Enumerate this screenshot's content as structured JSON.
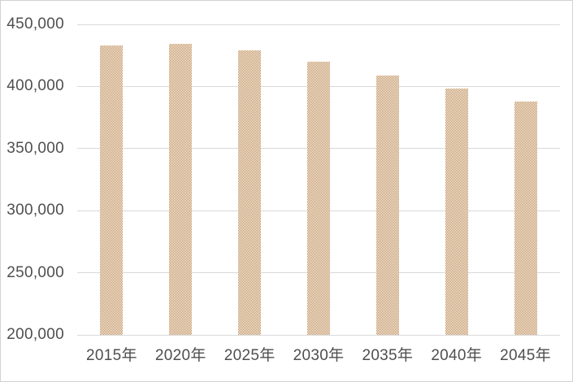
{
  "chart_data": {
    "type": "bar",
    "title": "",
    "xlabel": "",
    "ylabel": "",
    "categories": [
      "2015年",
      "2020年",
      "2025年",
      "2030年",
      "2035年",
      "2040年",
      "2045年"
    ],
    "values": [
      433000,
      434000,
      429000,
      420000,
      409000,
      398000,
      388000
    ],
    "ylim": [
      200000,
      450000
    ],
    "ytick_values": [
      200000,
      250000,
      300000,
      350000,
      400000,
      450000
    ],
    "ytick_labels": [
      "200,000",
      "250,000",
      "300,000",
      "350,000",
      "400,000",
      "450,000"
    ],
    "grid": true,
    "legend": false,
    "bar_pattern": "checkerboard-dotted",
    "bar_color": "#bc8850",
    "bar_pattern_bg": "#ffffff",
    "gridline_color": "#d9d9d9",
    "label_color": "#4f4f4f",
    "frame_border_color": "#d2d2d2",
    "background_color": "#ffffff"
  }
}
